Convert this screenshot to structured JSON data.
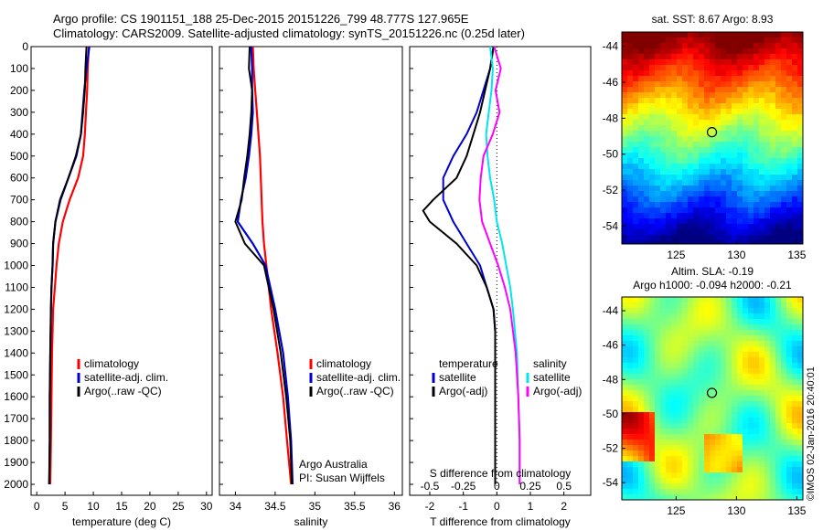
{
  "header": {
    "line1": "Argo profile: CS 1901151_188 25-Dec-2015 20151226_799 48.777S 127.965E",
    "line2": "Climatology: CARS2009. Satellite-adjusted climatology: synTS_20151226.nc (0.25d later)"
  },
  "colors": {
    "climatology": "#ff0000",
    "satellite": "#0000cc",
    "argo": "#000000",
    "argo_adj_sal": "#ff00ff",
    "satellite_sal": "#00e5ee"
  },
  "depth_ticks": [
    "0",
    "100",
    "200",
    "300",
    "400",
    "500",
    "600",
    "700",
    "800",
    "900",
    "1000",
    "1100",
    "1200",
    "1300",
    "1400",
    "1500",
    "1600",
    "1700",
    "1800",
    "1900",
    "2000"
  ],
  "chart_data": [
    {
      "type": "line",
      "name": "temperature",
      "xlabel": "temperature (deg C)",
      "ylabel": "",
      "xlim": [
        -1,
        31
      ],
      "ylim": [
        2050,
        0
      ],
      "xticks": [
        "0",
        "5",
        "10",
        "15",
        "20",
        "25",
        "30"
      ],
      "legend": [
        "climatology",
        "satellite-adj. clim.",
        "Argo(..raw -QC)"
      ],
      "series": [
        {
          "name": "climatology",
          "depth": [
            0,
            100,
            200,
            300,
            400,
            500,
            600,
            700,
            800,
            900,
            1000,
            1100,
            1200,
            1400,
            1600,
            1800,
            2000
          ],
          "values": [
            9.2,
            9.0,
            8.9,
            8.7,
            8.5,
            8.2,
            7.3,
            5.8,
            4.6,
            3.9,
            3.5,
            3.2,
            2.9,
            2.7,
            2.6,
            2.5,
            2.4
          ]
        },
        {
          "name": "satellite-adj. clim.",
          "depth": [
            0,
            100,
            200,
            300,
            400,
            500,
            600,
            700,
            800,
            900,
            1000,
            1100,
            1200,
            1400,
            1600,
            1800,
            2000
          ],
          "values": [
            9.3,
            8.8,
            8.4,
            8.1,
            7.8,
            7.0,
            5.6,
            4.2,
            3.3,
            2.9,
            2.8,
            2.6,
            2.5,
            2.4,
            2.3,
            2.3,
            2.2
          ]
        },
        {
          "name": "Argo(..raw -QC)",
          "depth": [
            0,
            100,
            200,
            300,
            400,
            500,
            600,
            700,
            800,
            900,
            1000,
            1100,
            1200,
            1400,
            1600,
            1800,
            2000
          ],
          "values": [
            8.8,
            8.6,
            8.5,
            8.2,
            7.8,
            6.9,
            5.6,
            4.1,
            3.3,
            2.9,
            2.8,
            2.6,
            2.5,
            2.4,
            2.3,
            2.3,
            2.2
          ]
        }
      ]
    },
    {
      "type": "line",
      "name": "salinity",
      "xlabel": "salinity",
      "ylabel": "",
      "xlim": [
        33.8,
        36.1
      ],
      "ylim": [
        2050,
        0
      ],
      "xticks": [
        "34",
        "34.5",
        "35",
        "35.5",
        "36"
      ],
      "legend": [
        "climatology",
        "satellite-adj. clim.",
        "Argo(..raw -QC)"
      ],
      "annotation": [
        "Argo Australia",
        "PI: Susan Wijffels"
      ],
      "series": [
        {
          "name": "climatology",
          "depth": [
            0,
            100,
            200,
            300,
            400,
            500,
            600,
            700,
            800,
            900,
            1000,
            1200,
            1400,
            1600,
            1800,
            2000
          ],
          "values": [
            34.22,
            34.23,
            34.25,
            34.27,
            34.29,
            34.31,
            34.32,
            34.33,
            34.34,
            34.36,
            34.39,
            34.45,
            34.53,
            34.6,
            34.65,
            34.7
          ]
        },
        {
          "name": "satellite-adj. clim.",
          "depth": [
            0,
            100,
            200,
            300,
            400,
            500,
            600,
            700,
            800,
            900,
            1000,
            1200,
            1400,
            1600,
            1800,
            2000
          ],
          "values": [
            34.2,
            34.21,
            34.21,
            34.22,
            34.2,
            34.17,
            34.13,
            34.07,
            34.03,
            34.22,
            34.38,
            34.5,
            34.6,
            34.66,
            34.7,
            34.72
          ]
        },
        {
          "name": "Argo(..raw -QC)",
          "depth": [
            0,
            100,
            200,
            300,
            400,
            500,
            600,
            700,
            800,
            900,
            1000,
            1200,
            1400,
            1600,
            1800,
            2000
          ],
          "values": [
            34.18,
            34.17,
            34.21,
            34.2,
            34.18,
            34.15,
            34.11,
            34.08,
            34.0,
            34.12,
            34.36,
            34.48,
            34.57,
            34.64,
            34.69,
            34.71
          ]
        }
      ]
    },
    {
      "type": "line",
      "name": "difference from climatology",
      "xlabel": "T difference from climatology",
      "xlabel2": "S difference from climatology",
      "xlim": [
        -2.6,
        2.8
      ],
      "ylim": [
        2050,
        0
      ],
      "xticks": [
        "-2",
        "-1",
        "0",
        "1",
        "2"
      ],
      "xticks2": [
        "-0.5",
        "-0.25",
        "0",
        "0.25",
        "0.5"
      ],
      "legend_titles": [
        "temperature",
        "salinity"
      ],
      "legend": [
        "satellite",
        "Argo(-adj)",
        "satellite",
        "Argo(-adj)"
      ],
      "series": [
        {
          "name": "temperature satellite",
          "depth": [
            0,
            100,
            200,
            300,
            400,
            500,
            600,
            700,
            800,
            900,
            1000,
            1100,
            1200,
            1300,
            1400,
            1600,
            2000
          ],
          "values": [
            -0.1,
            -0.2,
            -0.4,
            -0.6,
            -0.9,
            -1.3,
            -1.6,
            -1.6,
            -1.3,
            -0.9,
            -0.5,
            -0.3,
            -0.1,
            -0.05,
            -0.05,
            -0.05,
            -0.05
          ]
        },
        {
          "name": "temperature Argo(-adj)",
          "depth": [
            0,
            100,
            200,
            300,
            400,
            500,
            600,
            700,
            750,
            800,
            900,
            1000,
            1100,
            1200,
            1300,
            1400,
            1600,
            2000
          ],
          "values": [
            -0.1,
            -0.2,
            -0.35,
            -0.5,
            -0.7,
            -0.9,
            -1.2,
            -1.9,
            -2.2,
            -2.0,
            -1.2,
            -0.6,
            -0.3,
            -0.1,
            -0.05,
            -0.05,
            -0.05,
            -0.05
          ]
        },
        {
          "name": "salinity satellite",
          "depth": [
            0,
            100,
            200,
            300,
            400,
            500,
            600,
            700,
            800,
            900,
            1000,
            1100,
            1200,
            1400,
            1600,
            1800,
            2000
          ],
          "values": [
            -0.05,
            -0.03,
            -0.04,
            -0.06,
            -0.08,
            -0.07,
            -0.05,
            -0.02,
            0.0,
            0.04,
            0.07,
            0.1,
            0.12,
            0.15,
            0.16,
            0.17,
            0.17
          ]
        },
        {
          "name": "salinity Argo(-adj)",
          "depth": [
            0,
            100,
            200,
            300,
            400,
            500,
            600,
            700,
            800,
            900,
            1000,
            1100,
            1200,
            1400,
            1600,
            1800,
            2000
          ],
          "values": [
            -0.02,
            0.03,
            -0.01,
            0.02,
            -0.03,
            -0.1,
            -0.12,
            -0.13,
            -0.11,
            -0.05,
            0.01,
            0.06,
            0.1,
            0.14,
            0.16,
            0.17,
            0.17
          ]
        }
      ]
    },
    {
      "type": "heatmap",
      "name": "sat SST",
      "title": "sat. SST: 8.67 Argo: 8.93",
      "xticks": [
        "125",
        "130",
        "135"
      ],
      "yticks": [
        "-44",
        "-46",
        "-48",
        "-50",
        "-52",
        "-54"
      ],
      "xlim": [
        120.5,
        135.5
      ],
      "ylim": [
        -55,
        -43.2
      ],
      "marker": {
        "lon": 127.965,
        "lat": -48.777
      }
    },
    {
      "type": "heatmap",
      "name": "SLA",
      "title": "Altim. SLA: -0.19",
      "subtitle": "Argo h1000: -0.094 h2000: -0.21",
      "xticks": [
        "125",
        "130",
        "135"
      ],
      "yticks": [
        "-44",
        "-46",
        "-48",
        "-50",
        "-52",
        "-54"
      ],
      "xlim": [
        120.5,
        135.5
      ],
      "ylim": [
        -55,
        -43.2
      ],
      "marker": {
        "lon": 127.965,
        "lat": -48.777
      }
    }
  ],
  "footer": {
    "stamp": "©IMOS 02-Jan-2016 20:40:01"
  }
}
